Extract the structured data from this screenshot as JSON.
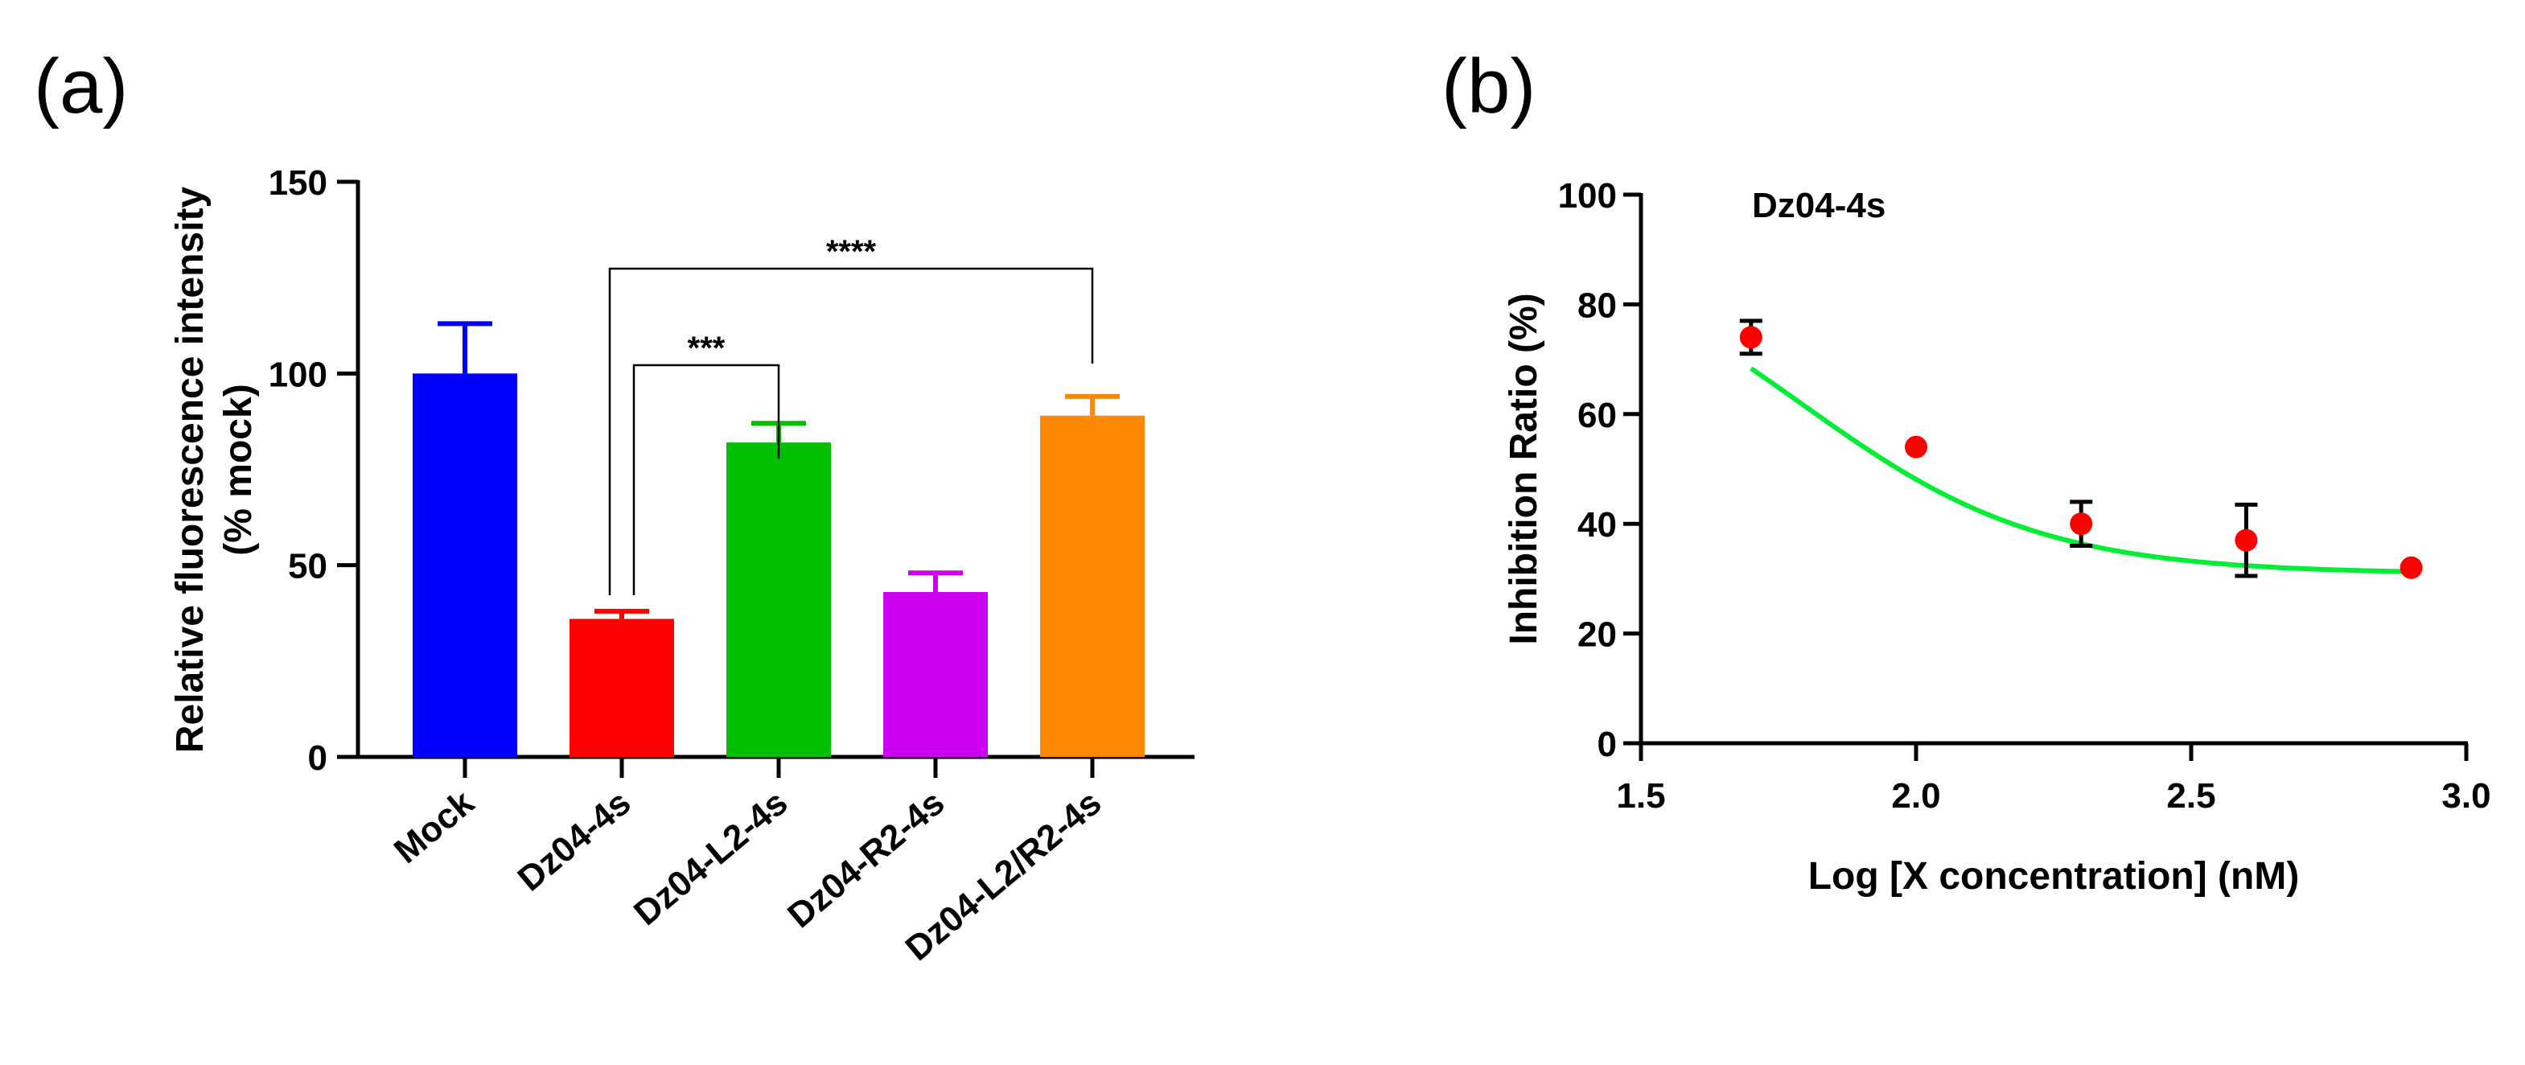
{
  "panels": {
    "a": {
      "label": "(a)"
    },
    "b": {
      "label": "(b)"
    }
  },
  "chart_data": [
    {
      "type": "bar",
      "panel": "(a)",
      "categories": [
        "Mock",
        "Dz04-4s",
        "Dz04-L2-4s",
        "Dz04-R2-4s",
        "Dz04-L2/R2-4s"
      ],
      "values": [
        100,
        36,
        82,
        43,
        89
      ],
      "errors": [
        13,
        2,
        5,
        5,
        5
      ],
      "colors": [
        "#0000ff",
        "#ff0000",
        "#00c000",
        "#cc00ee",
        "#ff8800"
      ],
      "ylabel_line1": "Relative fluorescence intensity",
      "ylabel_line2": "(% mock)",
      "ylim": [
        0,
        150
      ],
      "yticks": [
        0,
        50,
        100,
        150
      ],
      "significance": [
        {
          "from": "Dz04-4s",
          "to": "Dz04-L2-4s",
          "label": "***"
        },
        {
          "from": "Dz04-4s",
          "to": "Dz04-L2/R2-4s",
          "label": "****"
        }
      ]
    },
    {
      "type": "scatter",
      "panel": "(b)",
      "annotation": "Dz04-4s",
      "x": [
        1.7,
        2.0,
        2.3,
        2.6,
        2.9
      ],
      "y": [
        74,
        54,
        40,
        37,
        32
      ],
      "errors": [
        3,
        0,
        4,
        6.5,
        0
      ],
      "point_color": "#ff0000",
      "fit_color": "#00ee33",
      "fit": {
        "bottom": 30.9,
        "top": 92.9,
        "x0": 1.7916,
        "k": 4.59
      },
      "xlabel": "Log [X concentration] (nM)",
      "ylabel": "Inhibition Ratio (%)",
      "xlim": [
        1.5,
        3.0
      ],
      "ylim": [
        0,
        100
      ],
      "xticks": [
        "1.5",
        "2.0",
        "2.5",
        "3.0"
      ],
      "yticks": [
        0,
        20,
        40,
        60,
        80,
        100
      ]
    }
  ]
}
